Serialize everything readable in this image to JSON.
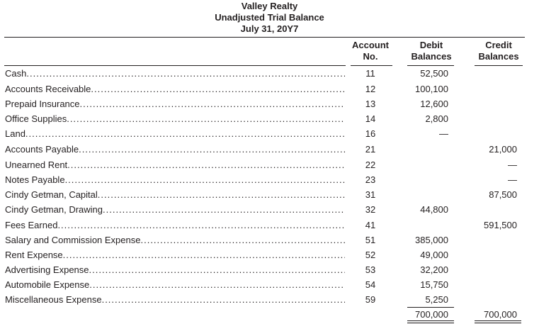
{
  "header": {
    "company": "Valley Realty",
    "title": "Unadjusted Trial Balance",
    "date": "July 31, 20Y7"
  },
  "columns": {
    "account_line1": "Account",
    "account_line2": "No.",
    "debit_line1": "Debit",
    "debit_line2": "Balances",
    "credit_line1": "Credit",
    "credit_line2": "Balances"
  },
  "rows": [
    {
      "name": "Cash",
      "acct": "11",
      "debit": "52,500",
      "credit": ""
    },
    {
      "name": "Accounts Receivable",
      "acct": "12",
      "debit": "100,100",
      "credit": ""
    },
    {
      "name": "Prepaid Insurance",
      "acct": "13",
      "debit": "12,600",
      "credit": ""
    },
    {
      "name": "Office Supplies",
      "acct": "14",
      "debit": "2,800",
      "credit": ""
    },
    {
      "name": "Land",
      "acct": "16",
      "debit": "—",
      "credit": ""
    },
    {
      "name": "Accounts Payable",
      "acct": "21",
      "debit": "",
      "credit": "21,000"
    },
    {
      "name": "Unearned Rent",
      "acct": "22",
      "debit": "",
      "credit": "—"
    },
    {
      "name": "Notes Payable",
      "acct": "23",
      "debit": "",
      "credit": "—"
    },
    {
      "name": "Cindy Getman, Capital",
      "acct": "31",
      "debit": "",
      "credit": "87,500"
    },
    {
      "name": "Cindy Getman, Drawing",
      "acct": "32",
      "debit": "44,800",
      "credit": ""
    },
    {
      "name": "Fees Earned",
      "acct": "41",
      "debit": "",
      "credit": "591,500"
    },
    {
      "name": "Salary and Commission Expense",
      "acct": "51",
      "debit": "385,000",
      "credit": ""
    },
    {
      "name": "Rent Expense",
      "acct": "52",
      "debit": "49,000",
      "credit": ""
    },
    {
      "name": "Advertising Expense",
      "acct": "53",
      "debit": "32,200",
      "credit": ""
    },
    {
      "name": "Automobile Expense",
      "acct": "54",
      "debit": "15,750",
      "credit": ""
    },
    {
      "name": "Miscellaneous Expense",
      "acct": "59",
      "debit": "5,250",
      "credit": ""
    }
  ],
  "totals": {
    "debit": "700,000",
    "credit": "700,000"
  }
}
